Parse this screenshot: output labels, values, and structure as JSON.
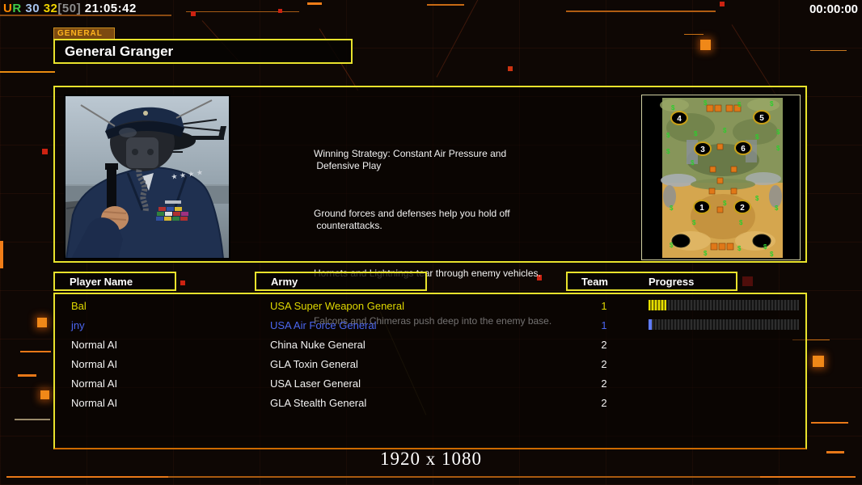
{
  "hud": {
    "net_u": "U",
    "net_r": "R",
    "stat_blue": "30",
    "stat_yellow": "32",
    "stat_bracket": "[50]",
    "clock": "21:05:42",
    "match_timer": "00:00:00"
  },
  "header": {
    "tab_label": "GENERAL",
    "general_name": "General Granger"
  },
  "strategy": {
    "p1_line1": "Winning Strategy: Constant Air Pressure and",
    "p1_line2": " Defensive Play",
    "p2_line1": "Ground forces and defenses help you hold off",
    "p2_line2": " counterattacks.",
    "p3": "Hornets and Lightnings tear through enemy vehicles.",
    "p4": "Falcons and Chimeras push deep into the enemy base."
  },
  "minimap": {
    "start_positions": [
      "1",
      "2",
      "3",
      "4",
      "5",
      "6"
    ],
    "supply_symbol": "$"
  },
  "table": {
    "headers": {
      "player": "Player Name",
      "army": "Army",
      "team": "Team",
      "progress": "Progress"
    },
    "rows": [
      {
        "player": "Bal",
        "army": "USA Super Weapon General",
        "team": "1",
        "progress_percent": 12
      },
      {
        "player": "jny",
        "army": "USA Air Force General",
        "team": "1",
        "progress_percent": 2
      },
      {
        "player": "Normal AI",
        "army": "China Nuke General",
        "team": "2"
      },
      {
        "player": "Normal AI",
        "army": "GLA Toxin General",
        "team": "2"
      },
      {
        "player": "Normal AI",
        "army": "USA Laser General",
        "team": "2"
      },
      {
        "player": "Normal AI",
        "army": "GLA Stealth General",
        "team": "2"
      }
    ]
  },
  "footer": {
    "resolution": "1920 x 1080"
  },
  "colors": {
    "accent_border": "#e8e22c",
    "accent_orange": "#f07d18",
    "player1_yellow": "#dfd800",
    "player2_blue": "#4a66f0",
    "ai_text": "#f2f2f2",
    "tab_text": "#ffb41e",
    "net_u": "#ff8800",
    "net_r": "#3ecb4a",
    "stat_blue": "#a7c4ee",
    "stat_yellow": "#f0d400"
  }
}
